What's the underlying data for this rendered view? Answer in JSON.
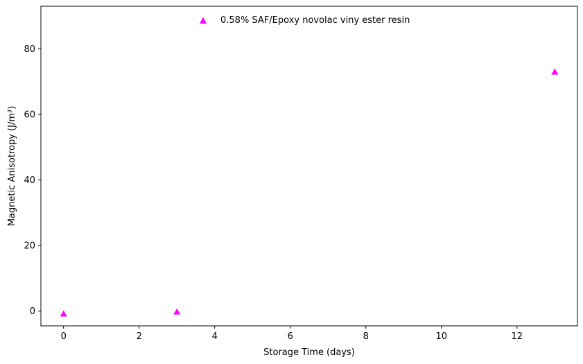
{
  "chart_data": {
    "type": "scatter",
    "title": "",
    "xlabel": "Storage Time (days)",
    "ylabel": "Magnetic Anisotropy (J/m³)",
    "xlim": [
      -0.6,
      13.6
    ],
    "ylim": [
      -4.5,
      93
    ],
    "xticks": [
      0,
      2,
      4,
      6,
      8,
      10,
      12
    ],
    "yticks": [
      0,
      20,
      40,
      60,
      80
    ],
    "grid": false,
    "legend_position": "top-center",
    "series": [
      {
        "name": "0.58% SAF/Epoxy novolac viny ester resin",
        "marker": "triangle-up",
        "color": "#ff00ff",
        "x": [
          0,
          3,
          13
        ],
        "y": [
          -0.8,
          -0.2,
          73
        ]
      }
    ]
  }
}
